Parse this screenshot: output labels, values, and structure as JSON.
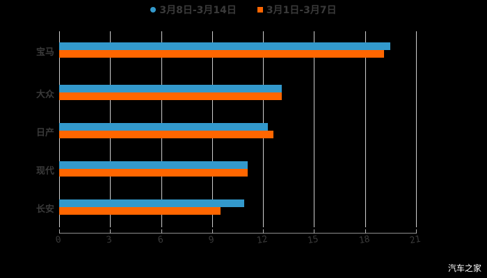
{
  "chart_data": {
    "type": "bar",
    "orientation": "horizontal",
    "title": "",
    "xlabel": "",
    "ylabel": "",
    "categories": [
      "宝马",
      "大众",
      "日产",
      "现代",
      "长安"
    ],
    "series": [
      {
        "name": "3月8日-3月14日",
        "color": "#3399cc",
        "values": [
          19.5,
          13.1,
          12.3,
          11.1,
          10.9
        ]
      },
      {
        "name": "3月1日-3月7日",
        "color": "#ff6600",
        "values": [
          19.1,
          13.1,
          12.6,
          11.1,
          9.5
        ]
      }
    ],
    "xlim": [
      0,
      21
    ],
    "xticks": [
      "0",
      "3",
      "6",
      "9",
      "12",
      "15",
      "18",
      "21"
    ],
    "grid": true,
    "legend_position": "top"
  },
  "legend": [
    {
      "label": "3月8日-3月14日",
      "color": "#3399cc"
    },
    {
      "label": "3月1日-3月7日",
      "color": "#ff6600"
    }
  ],
  "watermark": "汽车之家"
}
